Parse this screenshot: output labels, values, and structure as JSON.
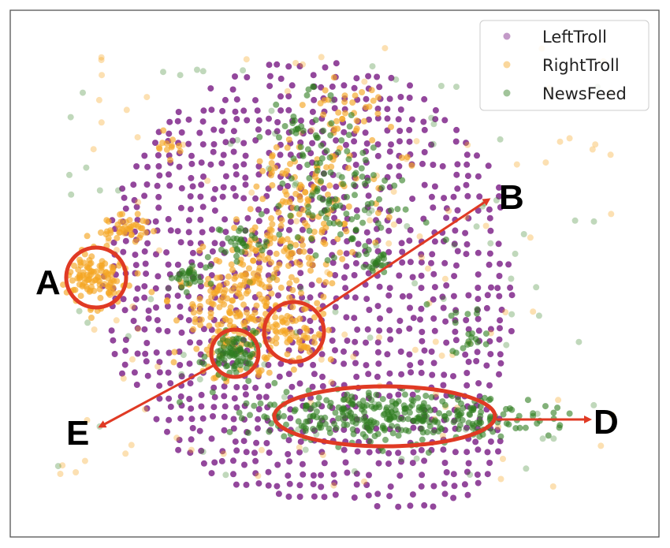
{
  "chart_data": {
    "type": "scatter",
    "title": "",
    "xlabel": "",
    "ylabel": "",
    "grid": false,
    "axes_ticks": false,
    "legend_placement": "top-right",
    "series": [
      {
        "name": "LeftTroll",
        "color": "#7b1f86"
      },
      {
        "name": "RightTroll",
        "color": "#f5a623"
      },
      {
        "name": "NewsFeed",
        "color": "#2e7d1f"
      }
    ],
    "callouts": [
      {
        "label": "A",
        "note": "RightTroll cluster"
      },
      {
        "label": "B",
        "note": "RightTroll cluster"
      },
      {
        "label": "D",
        "note": "NewsFeed cluster"
      },
      {
        "label": "E",
        "note": "NewsFeed cluster"
      }
    ],
    "highlight_color": "#e03a24"
  }
}
